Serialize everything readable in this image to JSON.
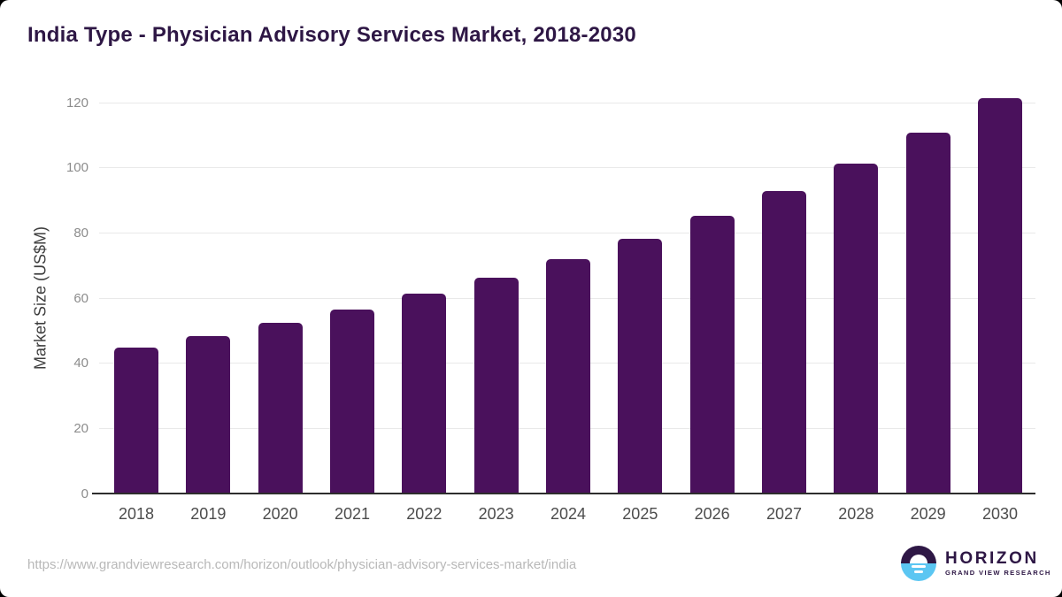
{
  "page": {
    "title": "India Type - Physician Advisory Services Market, 2018-2030"
  },
  "chart_data": {
    "type": "bar",
    "title": "India Type - Physician Advisory Services Market, 2018-2030",
    "categories": [
      "2018",
      "2019",
      "2020",
      "2021",
      "2022",
      "2023",
      "2024",
      "2025",
      "2026",
      "2027",
      "2028",
      "2029",
      "2030"
    ],
    "values": [
      44.9,
      48.3,
      52.5,
      56.4,
      61.3,
      66.3,
      72.0,
      78.2,
      85.2,
      92.9,
      101.3,
      110.8,
      121.3
    ],
    "xlabel": "",
    "ylabel": "Market Size (US$M)",
    "ylim": [
      0,
      120
    ],
    "yticks": [
      0,
      20,
      40,
      60,
      80,
      100,
      120
    ],
    "grid": true,
    "legend": false,
    "bar_color": "#4A115C"
  },
  "footer": {
    "source_url": "https://www.grandviewresearch.com/horizon/outlook/physician-advisory-services-market/india",
    "logo": {
      "brand": "HORIZON",
      "subtitle": "GRAND VIEW RESEARCH"
    }
  },
  "colors": {
    "title_text": "#2E1745",
    "bar": "#4A115C",
    "gridline": "#E9E9E9",
    "axis_line": "#2D2D2D",
    "y_tick_text": "#8C8C8C",
    "x_tick_text": "#4C4C4C",
    "axis_label_text": "#3E3E3E",
    "url_text": "#B8B8B8",
    "logo_purple": "#2E1745",
    "logo_blue": "#5BC6F2"
  }
}
